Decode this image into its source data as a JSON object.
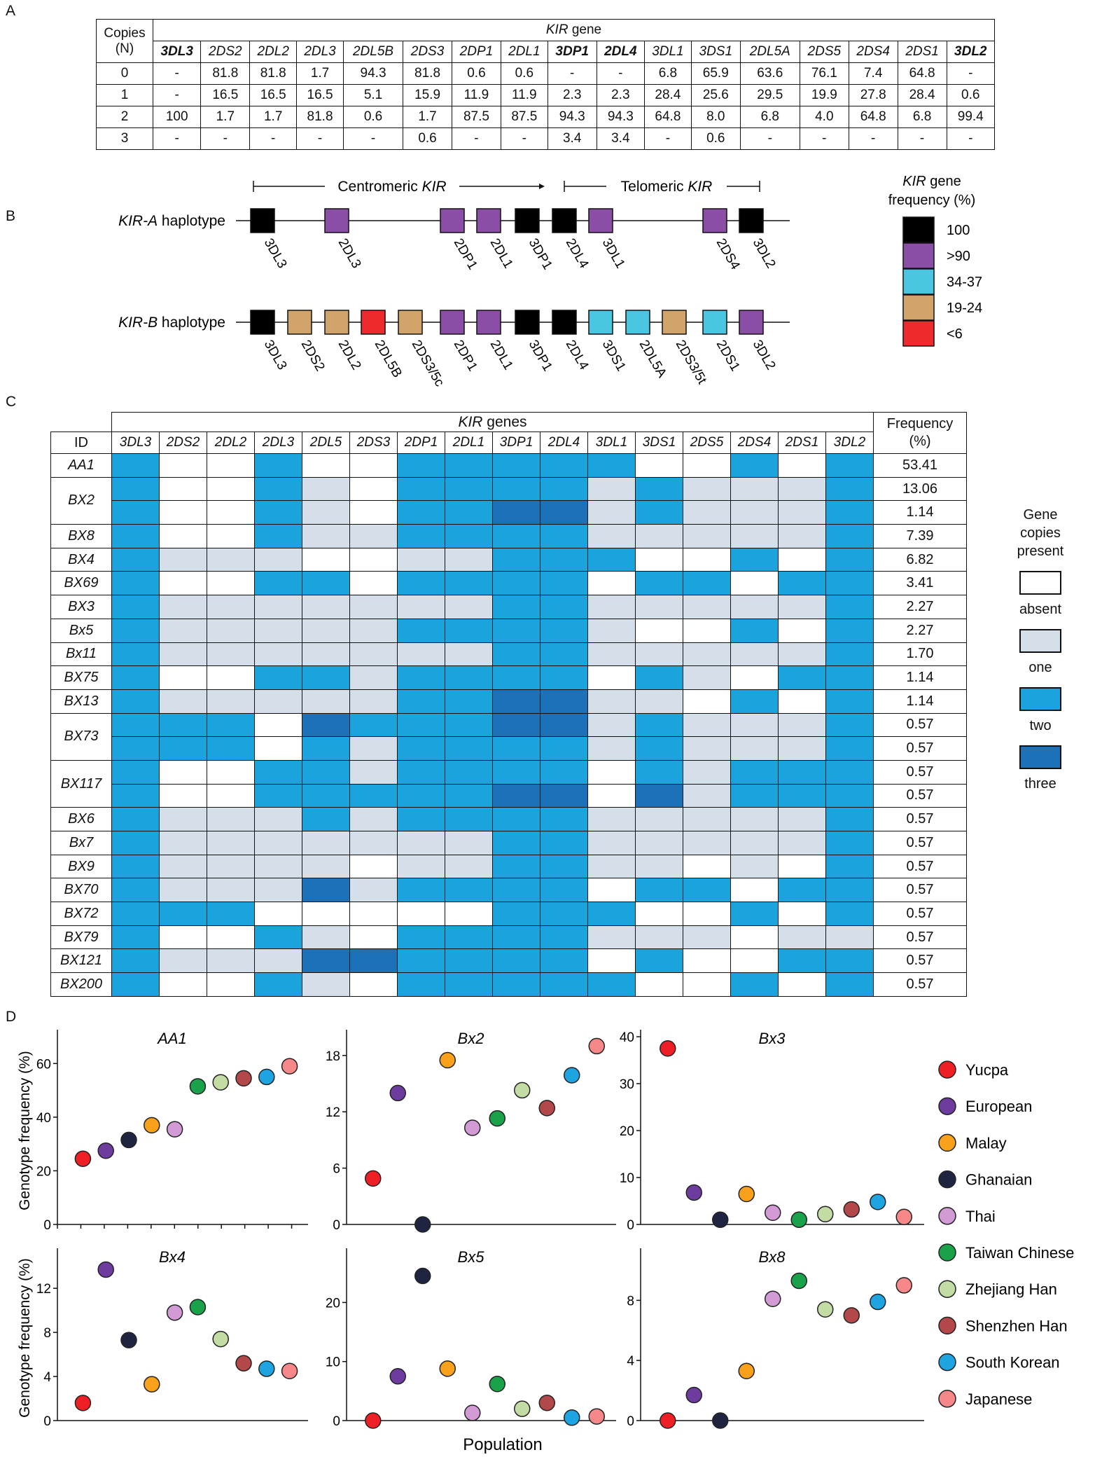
{
  "panel_labels": {
    "a": "A",
    "b": "B",
    "c": "C",
    "d": "D"
  },
  "panelA": {
    "copies_header": "Copies\n(N)",
    "copies_line1": "Copies",
    "copies_line2": "(N)",
    "kir_title_italic": "KIR",
    "kir_title_rest": " gene",
    "genes": [
      "3DL3",
      "2DS2",
      "2DL2",
      "2DL3",
      "2DL5B",
      "2DS3",
      "2DP1",
      "2DL1",
      "3DP1",
      "2DL4",
      "3DL1",
      "3DS1",
      "2DL5A",
      "2DS5",
      "2DS4",
      "2DS1",
      "3DL2"
    ],
    "bold_genes": [
      "3DL3",
      "3DP1",
      "2DL4",
      "3DL2"
    ],
    "rows": [
      {
        "n": "0",
        "values": [
          "-",
          "81.8",
          "81.8",
          "1.7",
          "94.3",
          "81.8",
          "0.6",
          "0.6",
          "-",
          "-",
          "6.8",
          "65.9",
          "63.6",
          "76.1",
          "7.4",
          "64.8",
          "-"
        ]
      },
      {
        "n": "1",
        "values": [
          "-",
          "16.5",
          "16.5",
          "16.5",
          "5.1",
          "15.9",
          "11.9",
          "11.9",
          "2.3",
          "2.3",
          "28.4",
          "25.6",
          "29.5",
          "19.9",
          "27.8",
          "28.4",
          "0.6"
        ]
      },
      {
        "n": "2",
        "values": [
          "100",
          "1.7",
          "1.7",
          "81.8",
          "0.6",
          "1.7",
          "87.5",
          "87.5",
          "94.3",
          "94.3",
          "64.8",
          "8.0",
          "6.8",
          "4.0",
          "64.8",
          "6.8",
          "99.4"
        ]
      },
      {
        "n": "3",
        "values": [
          "-",
          "-",
          "-",
          "-",
          "-",
          "0.6",
          "-",
          "-",
          "3.4",
          "3.4",
          "-",
          "0.6",
          "-",
          "-",
          "-",
          "-",
          "-"
        ]
      }
    ]
  },
  "panelB": {
    "centromeric_italic": "KIR",
    "centromeric_prefix": "Centromeric ",
    "telomeric_prefix": "Telomeric ",
    "telomeric_italic": "KIR",
    "haplotype_a_italic": "KIR-A",
    "haplotype_b_italic": "KIR-B",
    "haplotype_suffix": " haplotype",
    "haplotype_a_genes": [
      {
        "label": "3DL3",
        "color": "black"
      },
      {
        "label": "2DL3",
        "color": "purple"
      },
      {
        "label": "2DP1",
        "color": "purple"
      },
      {
        "label": "2DL1",
        "color": "purple"
      },
      {
        "label": "3DP1",
        "color": "black"
      },
      {
        "label": "2DL4",
        "color": "black"
      },
      {
        "label": "3DL1",
        "color": "purple"
      },
      {
        "label": "2DS4",
        "color": "purple"
      },
      {
        "label": "3DL2",
        "color": "black"
      }
    ],
    "haplotype_b_genes": [
      {
        "label": "3DL3",
        "color": "black"
      },
      {
        "label": "2DS2",
        "color": "tan"
      },
      {
        "label": "2DL2",
        "color": "tan"
      },
      {
        "label": "2DL5B",
        "color": "red"
      },
      {
        "label": "2DS3/5c",
        "color": "tan"
      },
      {
        "label": "2DP1",
        "color": "purple"
      },
      {
        "label": "2DL1",
        "color": "purple"
      },
      {
        "label": "3DP1",
        "color": "black"
      },
      {
        "label": "2DL4",
        "color": "black"
      },
      {
        "label": "3DS1",
        "color": "cyan"
      },
      {
        "label": "2DL5A",
        "color": "cyan"
      },
      {
        "label": "2DS3/5t",
        "color": "tan"
      },
      {
        "label": "2DS1",
        "color": "cyan"
      },
      {
        "label": "3DL2",
        "color": "purple"
      }
    ],
    "legend_title_italic": "KIR",
    "legend_title_rest": " gene",
    "legend_title_line2": "frequency (%)",
    "legend": [
      {
        "label": "100",
        "color": "#000000"
      },
      {
        "label": ">90",
        "color": "#8b4ea6"
      },
      {
        "label": "34-37",
        "color": "#4bc6e2"
      },
      {
        "label": "19-24",
        "color": "#d1a46c"
      },
      {
        "label": "<6",
        "color": "#ee2a2e"
      }
    ],
    "colors": {
      "black": "#000000",
      "purple": "#8b4ea6",
      "cyan": "#4bc6e2",
      "tan": "#d1a46c",
      "red": "#ee2a2e"
    }
  },
  "panelC": {
    "kir_genes_italic": "KIR",
    "kir_genes_rest": " genes",
    "id_header": "ID",
    "frequency_header": "Frequency\n(%)",
    "frequency_line1": "Frequency",
    "frequency_line2": "(%)",
    "genes": [
      "3DL3",
      "2DS2",
      "2DL2",
      "2DL3",
      "2DL5",
      "2DS3",
      "2DP1",
      "2DL1",
      "3DP1",
      "2DL4",
      "3DL1",
      "3DS1",
      "2DS5",
      "2DS4",
      "2DS1",
      "3DL2"
    ],
    "groups": [
      {
        "id": "AA1",
        "rows": [
          {
            "cells": [
              2,
              0,
              0,
              2,
              0,
              0,
              2,
              2,
              2,
              2,
              2,
              0,
              0,
              2,
              0,
              2
            ],
            "freq": "53.41"
          }
        ]
      },
      {
        "id": "BX2",
        "rows": [
          {
            "cells": [
              2,
              0,
              0,
              2,
              1,
              0,
              2,
              2,
              2,
              2,
              1,
              2,
              1,
              1,
              1,
              2
            ],
            "freq": "13.06"
          },
          {
            "cells": [
              2,
              0,
              0,
              2,
              1,
              0,
              2,
              2,
              3,
              3,
              1,
              2,
              1,
              1,
              1,
              2
            ],
            "freq": "1.14"
          }
        ]
      },
      {
        "id": "BX8",
        "rows": [
          {
            "cells": [
              2,
              0,
              0,
              2,
              1,
              1,
              2,
              2,
              2,
              2,
              1,
              1,
              1,
              1,
              1,
              2
            ],
            "freq": "7.39"
          }
        ]
      },
      {
        "id": "BX4",
        "rows": [
          {
            "cells": [
              2,
              1,
              1,
              1,
              0,
              0,
              1,
              1,
              2,
              2,
              2,
              0,
              0,
              2,
              0,
              2
            ],
            "freq": "6.82"
          }
        ]
      },
      {
        "id": "BX69",
        "rows": [
          {
            "cells": [
              2,
              0,
              0,
              2,
              2,
              0,
              2,
              2,
              2,
              2,
              0,
              2,
              2,
              0,
              2,
              2
            ],
            "freq": "3.41"
          }
        ]
      },
      {
        "id": "BX3",
        "rows": [
          {
            "cells": [
              2,
              1,
              1,
              1,
              1,
              1,
              1,
              1,
              2,
              2,
              1,
              1,
              1,
              1,
              1,
              2
            ],
            "freq": "2.27"
          }
        ]
      },
      {
        "id": "Bx5",
        "rows": [
          {
            "cells": [
              2,
              1,
              1,
              1,
              1,
              1,
              2,
              2,
              2,
              2,
              1,
              0,
              0,
              2,
              0,
              2
            ],
            "freq": "2.27"
          }
        ]
      },
      {
        "id": "Bx11",
        "rows": [
          {
            "cells": [
              2,
              1,
              1,
              1,
              1,
              1,
              1,
              1,
              2,
              2,
              1,
              1,
              1,
              1,
              1,
              2
            ],
            "freq": "1.70"
          }
        ]
      },
      {
        "id": "BX75",
        "rows": [
          {
            "cells": [
              2,
              0,
              0,
              2,
              2,
              1,
              2,
              2,
              2,
              2,
              0,
              2,
              1,
              0,
              2,
              2
            ],
            "freq": "1.14"
          }
        ]
      },
      {
        "id": "BX13",
        "rows": [
          {
            "cells": [
              2,
              1,
              1,
              1,
              1,
              1,
              2,
              2,
              3,
              3,
              1,
              1,
              0,
              2,
              0,
              2
            ],
            "freq": "1.14"
          }
        ]
      },
      {
        "id": "BX73",
        "rows": [
          {
            "cells": [
              2,
              2,
              2,
              0,
              3,
              2,
              2,
              2,
              3,
              3,
              1,
              2,
              1,
              1,
              1,
              2
            ],
            "freq": "0.57"
          },
          {
            "cells": [
              2,
              2,
              2,
              0,
              2,
              1,
              2,
              2,
              2,
              2,
              1,
              2,
              1,
              1,
              1,
              2
            ],
            "freq": "0.57"
          }
        ]
      },
      {
        "id": "BX117",
        "rows": [
          {
            "cells": [
              2,
              0,
              0,
              2,
              2,
              1,
              2,
              2,
              2,
              2,
              0,
              2,
              1,
              2,
              2,
              2
            ],
            "freq": "0.57"
          },
          {
            "cells": [
              2,
              0,
              0,
              2,
              2,
              2,
              2,
              2,
              3,
              3,
              0,
              3,
              1,
              2,
              2,
              2
            ],
            "freq": "0.57"
          }
        ]
      },
      {
        "id": "BX6",
        "rows": [
          {
            "cells": [
              2,
              1,
              1,
              1,
              2,
              1,
              2,
              2,
              2,
              2,
              1,
              1,
              1,
              1,
              1,
              2
            ],
            "freq": "0.57"
          }
        ]
      },
      {
        "id": "Bx7",
        "rows": [
          {
            "cells": [
              2,
              1,
              1,
              1,
              1,
              1,
              1,
              1,
              2,
              2,
              1,
              1,
              1,
              1,
              1,
              2
            ],
            "freq": "0.57"
          }
        ]
      },
      {
        "id": "BX9",
        "rows": [
          {
            "cells": [
              2,
              1,
              1,
              1,
              1,
              0,
              1,
              1,
              2,
              2,
              1,
              1,
              0,
              1,
              0,
              2
            ],
            "freq": "0.57"
          }
        ]
      },
      {
        "id": "BX70",
        "rows": [
          {
            "cells": [
              2,
              1,
              1,
              1,
              3,
              1,
              2,
              2,
              2,
              2,
              0,
              2,
              2,
              0,
              2,
              2
            ],
            "freq": "0.57"
          }
        ]
      },
      {
        "id": "BX72",
        "rows": [
          {
            "cells": [
              2,
              2,
              2,
              0,
              0,
              0,
              0,
              0,
              2,
              2,
              2,
              0,
              0,
              2,
              0,
              2
            ],
            "freq": "0.57"
          }
        ]
      },
      {
        "id": "BX79",
        "rows": [
          {
            "cells": [
              2,
              0,
              0,
              2,
              1,
              0,
              2,
              2,
              2,
              2,
              1,
              1,
              1,
              0,
              1,
              1
            ],
            "freq": "0.57"
          }
        ]
      },
      {
        "id": "BX121",
        "rows": [
          {
            "cells": [
              2,
              1,
              1,
              1,
              3,
              3,
              2,
              2,
              2,
              2,
              0,
              2,
              0,
              0,
              2,
              2
            ],
            "freq": "0.57"
          }
        ]
      },
      {
        "id": "BX200",
        "rows": [
          {
            "cells": [
              2,
              0,
              0,
              2,
              1,
              0,
              2,
              2,
              2,
              2,
              2,
              0,
              0,
              2,
              0,
              2
            ],
            "freq": "0.57"
          }
        ]
      }
    ],
    "legend_title_lines": [
      "Gene",
      "copies",
      "present"
    ],
    "legend": [
      {
        "label": "absent",
        "color": "#ffffff"
      },
      {
        "label": "one",
        "color": "#d4dfea"
      },
      {
        "label": "two",
        "color": "#1aa3dc"
      },
      {
        "label": "three",
        "color": "#1c71b8"
      }
    ]
  },
  "chart_data": [
    {
      "type": "scatter",
      "title": "AA1",
      "ylabel": "Genotype frequency (%)",
      "xlabel": "",
      "yticks": [
        0,
        20,
        40,
        60
      ],
      "ylim": [
        0,
        70
      ],
      "categories": [
        "Yucpa",
        "European",
        "Malay",
        "Ghanaian",
        "Thai",
        "Taiwan Chinese",
        "Zhejiang Han",
        "Shenzhen Han",
        "South Korean",
        "Japanese"
      ],
      "x_order": [
        "Yucpa",
        "European",
        "Ghanaian",
        "Malay",
        "Thai",
        "Taiwan Chinese",
        "Zhejiang Han",
        "Shenzhen Han",
        "South Korean",
        "Japanese"
      ],
      "values": [
        24.5,
        27.5,
        31.5,
        37,
        35.5,
        51.5,
        53,
        54.5,
        55,
        59
      ]
    },
    {
      "type": "scatter",
      "title": "Bx2",
      "ylabel": "",
      "xlabel": "",
      "yticks": [
        0,
        6,
        12,
        18
      ],
      "ylim": [
        0,
        20
      ],
      "x_order": [
        "Yucpa",
        "European",
        "Ghanaian",
        "Malay",
        "Thai",
        "Taiwan Chinese",
        "Zhejiang Han",
        "Shenzhen Han",
        "South Korean",
        "Japanese"
      ],
      "values": [
        4.9,
        14,
        0,
        17.5,
        10.3,
        11.3,
        14.3,
        12.4,
        15.9,
        19
      ]
    },
    {
      "type": "scatter",
      "title": "Bx3",
      "ylabel": "",
      "xlabel": "",
      "yticks": [
        0,
        10,
        20,
        30,
        40
      ],
      "ylim": [
        0,
        40
      ],
      "x_order": [
        "Yucpa",
        "European",
        "Ghanaian",
        "Malay",
        "Thai",
        "Taiwan Chinese",
        "Zhejiang Han",
        "Shenzhen Han",
        "South Korean",
        "Japanese"
      ],
      "values": [
        37.5,
        6.8,
        1,
        6.5,
        2.5,
        1,
        2.2,
        3.2,
        4.8,
        1.6
      ]
    },
    {
      "type": "scatter",
      "title": "Bx4",
      "ylabel": "Genotype frequency (%)",
      "xlabel": "",
      "yticks": [
        0,
        4,
        8,
        12
      ],
      "ylim": [
        0,
        15
      ],
      "x_order": [
        "Yucpa",
        "European",
        "Ghanaian",
        "Malay",
        "Thai",
        "Taiwan Chinese",
        "Zhejiang Han",
        "Shenzhen Han",
        "South Korean",
        "Japanese"
      ],
      "values": [
        1.6,
        13.7,
        7.3,
        3.3,
        9.8,
        10.3,
        7.4,
        5.2,
        4.7,
        4.5
      ]
    },
    {
      "type": "scatter",
      "title": "Bx5",
      "ylabel": "",
      "xlabel": "Population",
      "yticks": [
        0,
        10,
        20
      ],
      "ylim": [
        0,
        28
      ],
      "x_order": [
        "Yucpa",
        "European",
        "Ghanaian",
        "Malay",
        "Thai",
        "Taiwan Chinese",
        "Zhejiang Han",
        "Shenzhen Han",
        "South Korean",
        "Japanese"
      ],
      "values": [
        0,
        7.5,
        24.5,
        8.8,
        1.3,
        6.2,
        2,
        3,
        0.5,
        0.7
      ]
    },
    {
      "type": "scatter",
      "title": "Bx8",
      "ylabel": "",
      "xlabel": "",
      "yticks": [
        0,
        4,
        8
      ],
      "ylim": [
        0,
        11
      ],
      "x_order": [
        "Yucpa",
        "European",
        "Ghanaian",
        "Malay",
        "Thai",
        "Taiwan Chinese",
        "Zhejiang Han",
        "Shenzhen Han",
        "South Korean",
        "Japanese"
      ],
      "values": [
        0,
        1.7,
        0,
        3.3,
        8.1,
        9.3,
        7.4,
        7,
        7.9,
        9
      ]
    }
  ],
  "panelD_legend": [
    {
      "label": "Yucpa",
      "color": "#ee1f25"
    },
    {
      "label": "European",
      "color": "#6e3b9e"
    },
    {
      "label": "Malay",
      "color": "#f9a11b"
    },
    {
      "label": "Ghanaian",
      "color": "#1f2541"
    },
    {
      "label": "Thai",
      "color": "#d39bd6"
    },
    {
      "label": "Taiwan Chinese",
      "color": "#1aa24a"
    },
    {
      "label": "Zhejiang Han",
      "color": "#c2dca4"
    },
    {
      "label": "Shenzhen Han",
      "color": "#b2484a"
    },
    {
      "label": "South Korean",
      "color": "#1ea4e0"
    },
    {
      "label": "Japanese",
      "color": "#f7888a"
    }
  ],
  "point_colors_order": [
    "#ee1f25",
    "#6e3b9e",
    "#1f2541",
    "#f9a11b",
    "#d39bd6",
    "#1aa24a",
    "#c2dca4",
    "#b2484a",
    "#1ea4e0",
    "#f7888a"
  ]
}
